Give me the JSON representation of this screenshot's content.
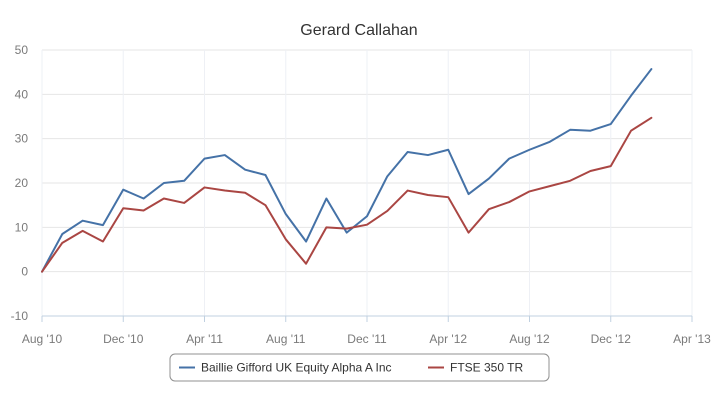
{
  "chart_data": {
    "type": "line",
    "title": "Gerard Callahan",
    "xlabel": "",
    "ylabel": "",
    "x_tick_labels": [
      "Aug '10",
      "Dec '10",
      "Apr '11",
      "Aug '11",
      "Dec '11",
      "Apr '12",
      "Aug '12",
      "Dec '12",
      "Apr '13"
    ],
    "y_ticks": [
      -10,
      0,
      10,
      20,
      30,
      40,
      50
    ],
    "ylim": [
      -10,
      50
    ],
    "x_months_range": [
      "2010-08",
      "2013-04"
    ],
    "x": [
      "2010-08",
      "2010-09",
      "2010-10",
      "2010-11",
      "2010-12",
      "2011-01",
      "2011-02",
      "2011-03",
      "2011-04",
      "2011-05",
      "2011-06",
      "2011-07",
      "2011-08",
      "2011-09",
      "2011-10",
      "2011-11",
      "2011-12",
      "2012-01",
      "2012-02",
      "2012-03",
      "2012-04",
      "2012-05",
      "2012-06",
      "2012-07",
      "2012-08",
      "2012-09",
      "2012-10",
      "2012-11",
      "2012-12",
      "2013-01",
      "2013-02"
    ],
    "series": [
      {
        "name": "Baillie Gifford UK Equity Alpha A Inc",
        "color": "#4572a7",
        "values": [
          0,
          8.5,
          11.5,
          10.5,
          18.5,
          16.5,
          20,
          20.5,
          25.5,
          26.3,
          23,
          21.8,
          13,
          6.8,
          16.5,
          8.8,
          12.5,
          21.5,
          27,
          26.3,
          27.5,
          17.5,
          21,
          25.5,
          27.5,
          29.3,
          32,
          31.8,
          33.3,
          39.7,
          45.7
        ]
      },
      {
        "name": "FTSE 350 TR",
        "color": "#aa4643",
        "values": [
          0,
          6.5,
          9.2,
          6.8,
          14.3,
          13.8,
          16.5,
          15.5,
          19,
          18.3,
          17.8,
          15,
          7.3,
          1.8,
          10,
          9.7,
          10.6,
          13.7,
          18.3,
          17.3,
          16.8,
          8.8,
          14.1,
          15.7,
          18.1,
          19.3,
          20.5,
          22.7,
          23.8,
          31.8,
          34.7
        ]
      }
    ],
    "grid": true,
    "legend_position": "bottom-center"
  }
}
